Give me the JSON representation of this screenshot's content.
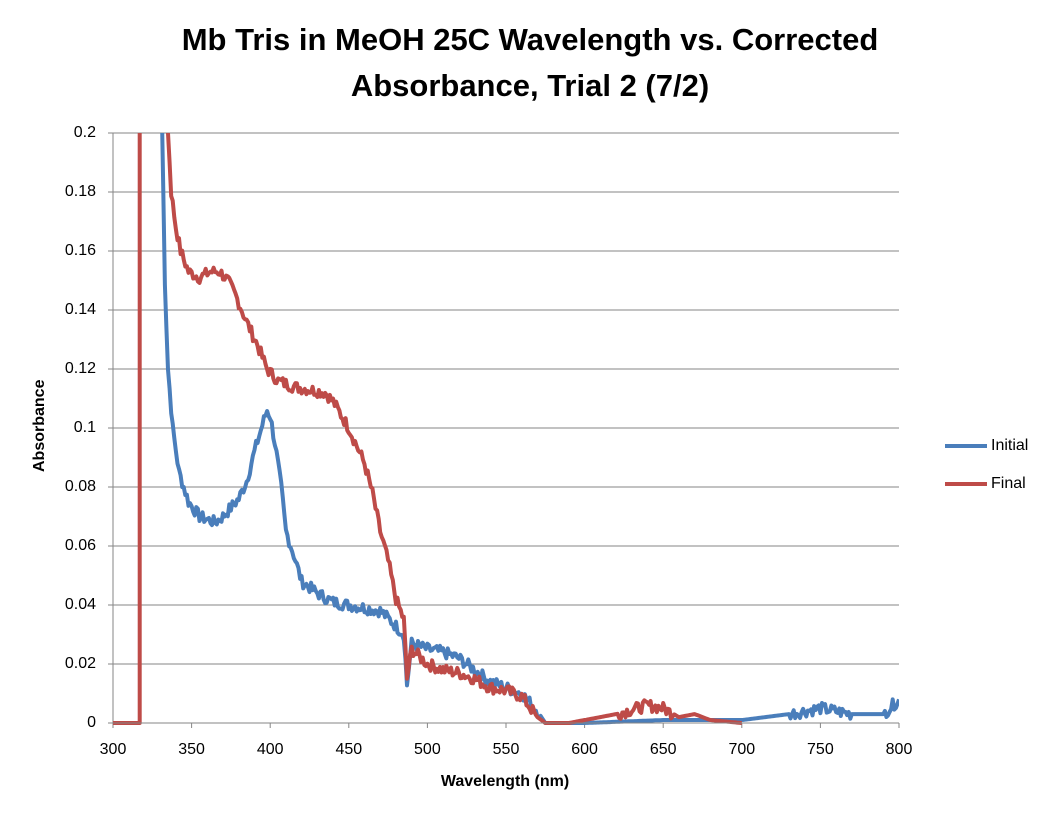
{
  "chart_data": {
    "type": "line",
    "title_lines": [
      "Mb Tris in MeOH 25C Wavelength vs. Corrected",
      "Absorbance, Trial 2 (7/2)"
    ],
    "xlabel": "Wavelength (nm)",
    "ylabel": "Absorbance",
    "xlim": [
      300,
      800
    ],
    "ylim": [
      0,
      0.2
    ],
    "xticks": [
      "300",
      "350",
      "400",
      "450",
      "500",
      "550",
      "600",
      "650",
      "700",
      "750",
      "800"
    ],
    "yticks": [
      "0",
      "0.02",
      "0.04",
      "0.06",
      "0.08",
      "0.1",
      "0.12",
      "0.14",
      "0.16",
      "0.18",
      "0.2"
    ],
    "grid": "horizontal",
    "legend_position": "right",
    "series": [
      {
        "name": "Initial",
        "color": "#4a7ebb",
        "points": [
          [
            331,
            0.21
          ],
          [
            333,
            0.15
          ],
          [
            335,
            0.12
          ],
          [
            338,
            0.1
          ],
          [
            342,
            0.085
          ],
          [
            348,
            0.075
          ],
          [
            355,
            0.07
          ],
          [
            365,
            0.068
          ],
          [
            370,
            0.07
          ],
          [
            375,
            0.073
          ],
          [
            380,
            0.076
          ],
          [
            385,
            0.082
          ],
          [
            390,
            0.092
          ],
          [
            395,
            0.101
          ],
          [
            398,
            0.106
          ],
          [
            400,
            0.104
          ],
          [
            403,
            0.095
          ],
          [
            407,
            0.08
          ],
          [
            410,
            0.065
          ],
          [
            415,
            0.057
          ],
          [
            420,
            0.048
          ],
          [
            430,
            0.044
          ],
          [
            440,
            0.041
          ],
          [
            450,
            0.04
          ],
          [
            460,
            0.039
          ],
          [
            470,
            0.038
          ],
          [
            478,
            0.034
          ],
          [
            485,
            0.03
          ],
          [
            487,
            0.013
          ],
          [
            490,
            0.027
          ],
          [
            500,
            0.025
          ],
          [
            510,
            0.024
          ],
          [
            520,
            0.022
          ],
          [
            530,
            0.018
          ],
          [
            540,
            0.014
          ],
          [
            550,
            0.012
          ],
          [
            560,
            0.01
          ],
          [
            570,
            0.004
          ],
          [
            575,
            0
          ],
          [
            600,
            0
          ],
          [
            650,
            0.001
          ],
          [
            700,
            0.001
          ],
          [
            730,
            0.003
          ],
          [
            750,
            0.005
          ],
          [
            770,
            0.003
          ],
          [
            790,
            0.003
          ],
          [
            800,
            0.008
          ]
        ]
      },
      {
        "name": "Final",
        "color": "#be4b48",
        "points": [
          [
            300,
            0
          ],
          [
            317,
            0
          ],
          [
            317,
            0.21
          ],
          [
            334,
            0.21
          ],
          [
            337,
            0.18
          ],
          [
            340,
            0.168
          ],
          [
            343,
            0.16
          ],
          [
            348,
            0.153
          ],
          [
            355,
            0.151
          ],
          [
            362,
            0.153
          ],
          [
            368,
            0.153
          ],
          [
            373,
            0.15
          ],
          [
            378,
            0.145
          ],
          [
            385,
            0.136
          ],
          [
            392,
            0.128
          ],
          [
            398,
            0.12
          ],
          [
            405,
            0.116
          ],
          [
            415,
            0.114
          ],
          [
            425,
            0.113
          ],
          [
            435,
            0.112
          ],
          [
            440,
            0.109
          ],
          [
            450,
            0.1
          ],
          [
            460,
            0.088
          ],
          [
            465,
            0.078
          ],
          [
            470,
            0.065
          ],
          [
            475,
            0.055
          ],
          [
            480,
            0.042
          ],
          [
            485,
            0.035
          ],
          [
            487,
            0.015
          ],
          [
            490,
            0.025
          ],
          [
            500,
            0.02
          ],
          [
            510,
            0.018
          ],
          [
            520,
            0.017
          ],
          [
            530,
            0.015
          ],
          [
            540,
            0.012
          ],
          [
            550,
            0.011
          ],
          [
            560,
            0.009
          ],
          [
            570,
            0.002
          ],
          [
            575,
            0
          ],
          [
            590,
            0
          ],
          [
            600,
            0.001
          ],
          [
            620,
            0.003
          ],
          [
            640,
            0.006
          ],
          [
            650,
            0.005
          ],
          [
            660,
            0.002
          ],
          [
            670,
            0.003
          ],
          [
            680,
            0.001
          ],
          [
            700,
            0
          ]
        ]
      }
    ]
  }
}
